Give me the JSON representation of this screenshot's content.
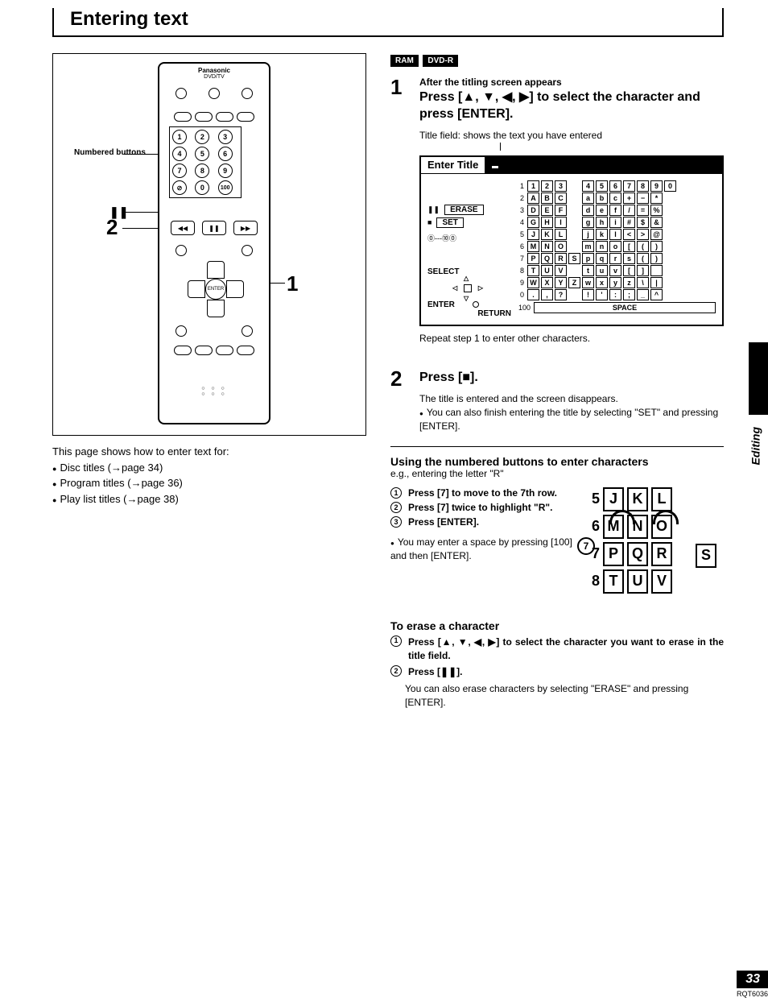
{
  "page_title": "Entering text",
  "remote": {
    "brand": "Panasonic",
    "sub": "DVD/TV",
    "callout_numbered": "Numbered buttons",
    "numbers": [
      "1",
      "2",
      "3",
      "4",
      "5",
      "6",
      "7",
      "8",
      "9",
      "0",
      "10",
      "100"
    ],
    "dpad_center": "ENTER",
    "callout_1": "1",
    "callout_2": "2",
    "pause_sym": "❚❚"
  },
  "left_intro": "This page shows how to enter text for:",
  "left_bullets": [
    "Disc titles (→page 34)",
    "Program titles (→page 36)",
    "Play list titles (→page 38)"
  ],
  "badges": [
    "RAM",
    "DVD-R"
  ],
  "step1": {
    "num": "1",
    "hint": "After the titling screen appears",
    "main": "Press [▲, ▼, ◀, ▶] to select the character and press [ENTER].",
    "field_label": "Title field: shows the text you have entered"
  },
  "screen": {
    "title_label": "Enter Title",
    "erase": "ERASE",
    "set": "SET",
    "select": "SELECT",
    "enter": "ENTER",
    "return": "RETURN",
    "space": "SPACE",
    "zero_hundred": "⓪---⑩⓪",
    "pause_sym": "❚❚",
    "stop_sym": "■",
    "rows": [
      {
        "n": "1",
        "left": [
          "1",
          "2",
          "3"
        ],
        "right": [
          "4",
          "5",
          "6",
          "7",
          "8",
          "9",
          "0"
        ]
      },
      {
        "n": "2",
        "left": [
          "A",
          "B",
          "C"
        ],
        "right": [
          "a",
          "b",
          "c",
          "+",
          "−",
          "*"
        ]
      },
      {
        "n": "3",
        "left": [
          "D",
          "E",
          "F"
        ],
        "right": [
          "d",
          "e",
          "f",
          "/",
          "=",
          "%"
        ]
      },
      {
        "n": "4",
        "left": [
          "G",
          "H",
          "I"
        ],
        "right": [
          "g",
          "h",
          "i",
          "#",
          "$",
          "&"
        ]
      },
      {
        "n": "5",
        "left": [
          "J",
          "K",
          "L"
        ],
        "right": [
          "j",
          "k",
          "l",
          "<",
          ">",
          "@"
        ]
      },
      {
        "n": "6",
        "left": [
          "M",
          "N",
          "O"
        ],
        "right": [
          "m",
          "n",
          "o",
          "[",
          "(",
          ")"
        ]
      },
      {
        "n": "7",
        "left": [
          "P",
          "Q",
          "R"
        ],
        "right": [
          "p",
          "q",
          "r",
          "s",
          "(",
          ")"
        ]
      },
      {
        "n": "8",
        "left": [
          "T",
          "U",
          "V"
        ],
        "right": [
          "t",
          "u",
          "v",
          "[",
          "]",
          ""
        ]
      },
      {
        "n": "9",
        "left": [
          "W",
          "X",
          "Y"
        ],
        "right": [
          "w",
          "x",
          "y",
          "z",
          "\\",
          "|"
        ]
      },
      {
        "n": "0",
        "left": [
          ".",
          ",",
          "?"
        ],
        "right": [
          "!",
          "'",
          ":",
          ";",
          "_",
          "^"
        ]
      }
    ],
    "row7_highlight": "S",
    "z_cell": "Z",
    "space_num": "100"
  },
  "repeat_note": "Repeat step 1 to enter other characters.",
  "step2": {
    "num": "2",
    "main": "Press [■].",
    "note1": "The title is entered and the screen disappears.",
    "bullet": "You can also finish entering the title by selecting \"SET\" and pressing [ENTER]."
  },
  "numbered_section": {
    "heading": "Using the numbered buttons to enter characters",
    "sub": "e.g., entering the letter \"R\"",
    "items": [
      "Press [7] to move to the 7th row.",
      "Press [7] twice to highlight \"R\".",
      "Press [ENTER]."
    ],
    "bullet": "You may enter a space by pressing [100] and then [ENTER]."
  },
  "jkl": {
    "rows": [
      {
        "n": "5",
        "cells": [
          "J",
          "K",
          "L"
        ]
      },
      {
        "n": "6",
        "cells": [
          "M",
          "N",
          "O"
        ]
      },
      {
        "n": "7",
        "cells": [
          "P",
          "Q",
          "R"
        ]
      },
      {
        "n": "8",
        "cells": [
          "T",
          "U",
          "V"
        ]
      }
    ],
    "extra": "S",
    "seven": "7"
  },
  "erase_section": {
    "heading": "To erase a character",
    "item1": "Press [▲, ▼, ◀, ▶] to select the character you want to erase in the title field.",
    "item2": "Press [❚❚].",
    "note": "You can also erase characters by selecting \"ERASE\" and pressing [ENTER]."
  },
  "side_label": "Editing",
  "page_number": "33",
  "doc_number": "RQT6036"
}
